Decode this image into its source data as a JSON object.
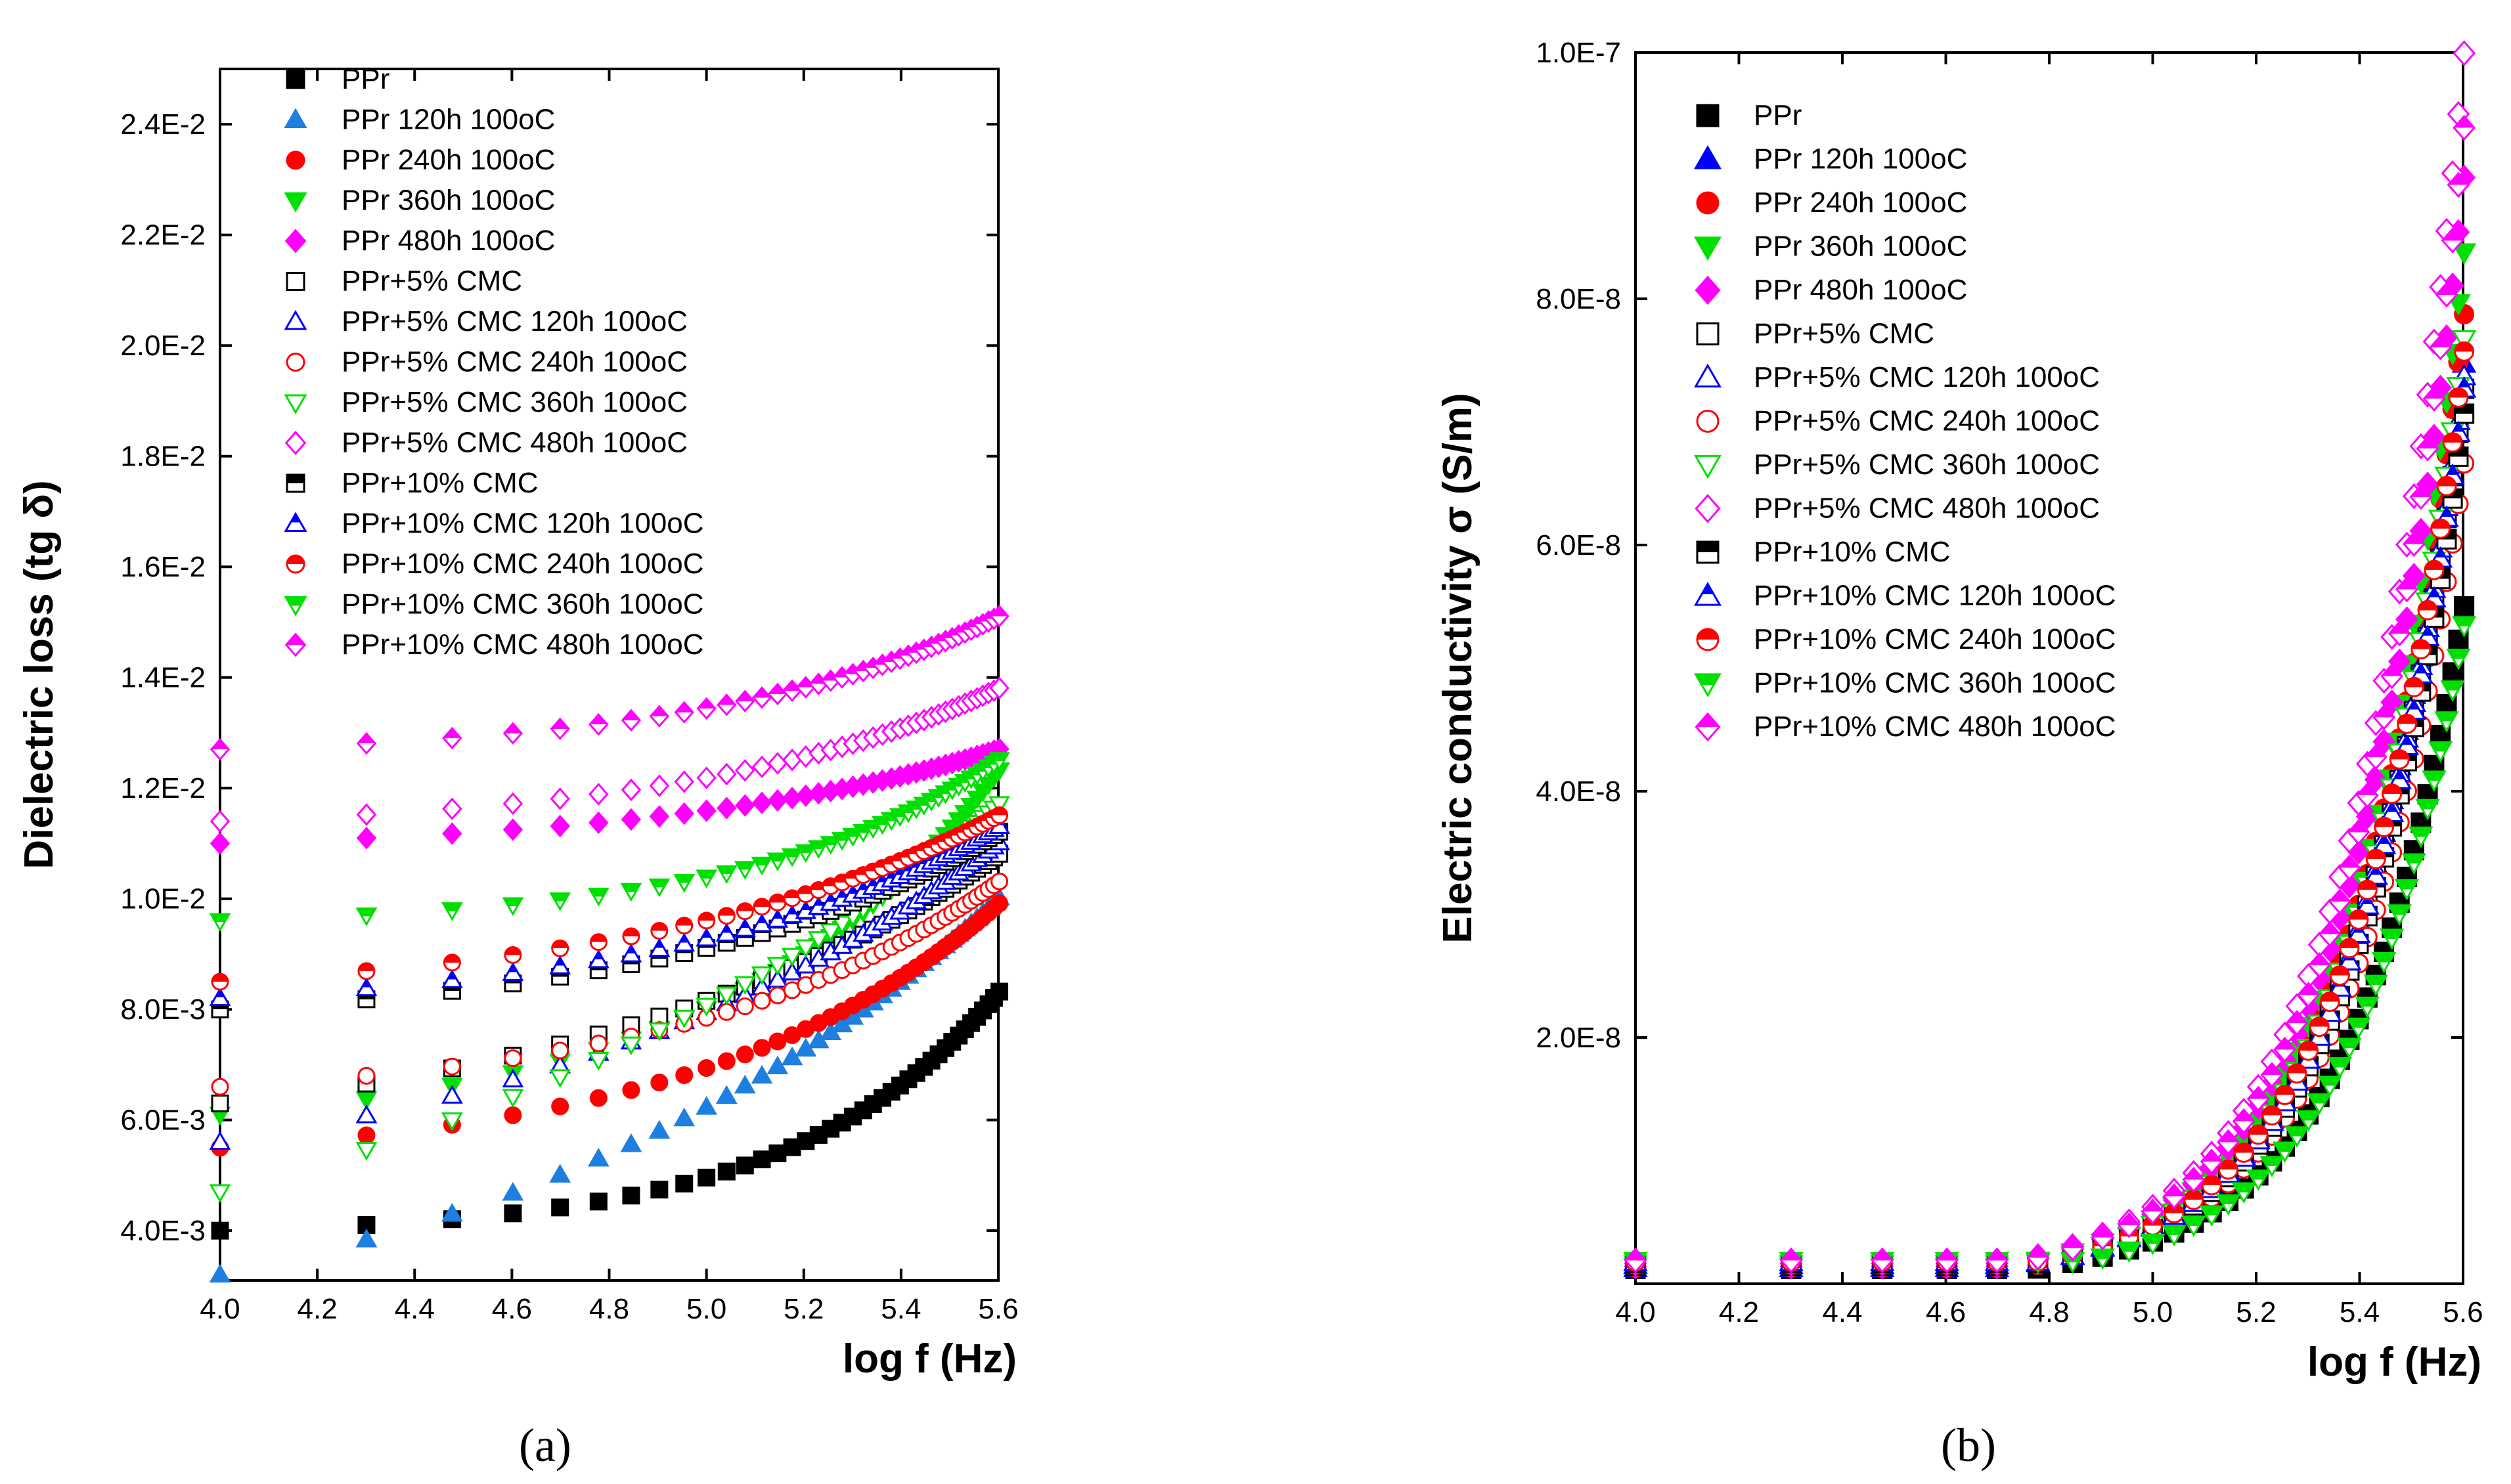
{
  "chart_data": [
    {
      "type": "scatter",
      "panel": "(a)",
      "caption": "(a)",
      "xlabel": "log f (Hz)",
      "ylabel": "Dielectric loss (tg δ)",
      "xlim": [
        4.0,
        5.6
      ],
      "ylim": [
        0.0031,
        0.025
      ],
      "xticks": [
        4.0,
        4.2,
        4.4,
        4.6,
        4.8,
        5.0,
        5.2,
        5.4,
        5.6
      ],
      "xtick_labels": [
        "4.0",
        "4.2",
        "4.4",
        "4.6",
        "4.8",
        "5.0",
        "5.2",
        "5.4",
        "5.6"
      ],
      "yticks": [
        0.004,
        0.006,
        0.008,
        0.01,
        0.012,
        0.014,
        0.016,
        0.018,
        0.02,
        0.022,
        0.024
      ],
      "ytick_labels": [
        "4.0E-3",
        "6.0E-3",
        "8.0E-3",
        "1.0E-2",
        "1.2E-2",
        "1.4E-2",
        "1.6E-2",
        "1.8E-2",
        "2.0E-2",
        "2.2E-2",
        "2.4E-2"
      ],
      "legend_position": "top-left",
      "series": [
        {
          "name": "PPr",
          "marker": "square",
          "fill": "solid",
          "color": "#000000",
          "start": 0.004,
          "end": 0.0083
        },
        {
          "name": "PPr  120h 100oC",
          "marker": "triangle-up",
          "fill": "solid",
          "color": "#1E7FE0",
          "start": 0.0032,
          "end": 0.01
        },
        {
          "name": "PPr  240h 100oC",
          "marker": "circle",
          "fill": "solid",
          "color": "#FF0000",
          "start": 0.0055,
          "end": 0.0099
        },
        {
          "name": "PPr  360h 100oC",
          "marker": "triangle-down",
          "fill": "solid",
          "color": "#00E000",
          "start": 0.0061,
          "end": 0.0123
        },
        {
          "name": "PPr  480h 100oC",
          "marker": "diamond",
          "fill": "solid",
          "color": "#FF00FF",
          "start": 0.011,
          "end": 0.0127
        },
        {
          "name": "PPr+5% CMC",
          "marker": "square",
          "fill": "open",
          "color": "#000000",
          "start": 0.0063,
          "end": 0.0108
        },
        {
          "name": "PPr+5% CMC  120h 100oC",
          "marker": "triangle-up",
          "fill": "open",
          "color": "#0000FF",
          "start": 0.0056,
          "end": 0.011
        },
        {
          "name": "PPr+5% CMC  240h 100oC",
          "marker": "circle",
          "fill": "open",
          "color": "#FF0000",
          "start": 0.0066,
          "end": 0.0103
        },
        {
          "name": "PPr+5% CMC  360h 100oC",
          "marker": "triangle-down",
          "fill": "open",
          "color": "#00E000",
          "start": 0.0047,
          "end": 0.0117
        },
        {
          "name": "PPr+5% CMC  480h 100oC",
          "marker": "diamond",
          "fill": "open",
          "color": "#FF00FF",
          "start": 0.0114,
          "end": 0.0138
        },
        {
          "name": "PPr+10% CMC",
          "marker": "square",
          "fill": "half",
          "color": "#000000",
          "start": 0.008,
          "end": 0.0112
        },
        {
          "name": "PPr+10% CMC  120h 100oC",
          "marker": "triangle-up",
          "fill": "half",
          "color": "#0000FF",
          "start": 0.0082,
          "end": 0.0113
        },
        {
          "name": "PPr+10% CMC  240h 100oC",
          "marker": "circle",
          "fill": "half",
          "color": "#FF0000",
          "start": 0.0085,
          "end": 0.0115
        },
        {
          "name": "PPr+10% CMC  360h 100oC",
          "marker": "triangle-down",
          "fill": "half",
          "color": "#00E000",
          "start": 0.0096,
          "end": 0.0125
        },
        {
          "name": "PPr+10% CMC  480h 100oC",
          "marker": "diamond",
          "fill": "half",
          "color": "#FF00FF",
          "start": 0.0127,
          "end": 0.0151
        }
      ]
    },
    {
      "type": "scatter",
      "panel": "(b)",
      "caption": "(b)",
      "xlabel": "log f (Hz)",
      "ylabel": "Electric conductivity σ (S/m)",
      "xlim": [
        4.0,
        5.6
      ],
      "ylim": [
        0.0,
        1e-07
      ],
      "xticks": [
        4.0,
        4.2,
        4.4,
        4.6,
        4.8,
        5.0,
        5.2,
        5.4,
        5.6
      ],
      "xtick_labels": [
        "4.0",
        "4.2",
        "4.4",
        "4.6",
        "4.8",
        "5.0",
        "5.2",
        "5.4",
        "5.6"
      ],
      "yticks": [
        2e-08,
        4e-08,
        6e-08,
        8e-08,
        1e-07
      ],
      "ytick_labels": [
        "2.0E-8",
        "4.0E-8",
        "6.0E-8",
        "8.0E-8",
        "1.0E-7"
      ],
      "legend_position": "top-left",
      "series": [
        {
          "name": "PPr",
          "marker": "square",
          "fill": "solid",
          "color": "#000000",
          "end": 5.45e-08
        },
        {
          "name": "PPr  120h 100oC",
          "marker": "triangle-up",
          "fill": "solid",
          "color": "#0000FF",
          "end": 7.4e-08
        },
        {
          "name": "PPr  240h 100oC",
          "marker": "circle",
          "fill": "solid",
          "color": "#FF0000",
          "end": 7.8e-08
        },
        {
          "name": "PPr  360h 100oC",
          "marker": "triangle-down",
          "fill": "solid",
          "color": "#00E000",
          "end": 8.3e-08
        },
        {
          "name": "PPr  480h 100oC",
          "marker": "diamond",
          "fill": "solid",
          "color": "#FF00FF",
          "end": 8.9e-08
        },
        {
          "name": "PPr+5% CMC",
          "marker": "square",
          "fill": "open",
          "color": "#000000",
          "end": 7.2e-08
        },
        {
          "name": "PPr+5% CMC  120h 100oC",
          "marker": "triangle-up",
          "fill": "open",
          "color": "#0000FF",
          "end": 7.3e-08
        },
        {
          "name": "PPr+5% CMC  240h 100oC",
          "marker": "circle",
          "fill": "open",
          "color": "#FF0000",
          "end": 6.6e-08
        },
        {
          "name": "PPr+5% CMC  360h 100oC",
          "marker": "triangle-down",
          "fill": "open",
          "color": "#00E000",
          "end": 7.6e-08
        },
        {
          "name": "PPr+5% CMC  480h 100oC",
          "marker": "diamond",
          "fill": "open",
          "color": "#FF00FF",
          "end": 9.9e-08
        },
        {
          "name": "PPr+10% CMC",
          "marker": "square",
          "fill": "half",
          "color": "#000000",
          "end": 7e-08
        },
        {
          "name": "PPr+10% CMC  120h 100oC",
          "marker": "triangle-up",
          "fill": "half",
          "color": "#0000FF",
          "end": 7.2e-08
        },
        {
          "name": "PPr+10% CMC  240h 100oC",
          "marker": "circle",
          "fill": "half",
          "color": "#FF0000",
          "end": 7.5e-08
        },
        {
          "name": "PPr+10% CMC  360h 100oC",
          "marker": "triangle-down",
          "fill": "half",
          "color": "#00E000",
          "end": 5.3e-08
        },
        {
          "name": "PPr+10% CMC  480h 100oC",
          "marker": "diamond",
          "fill": "half",
          "color": "#FF00FF",
          "end": 9.3e-08
        }
      ]
    }
  ]
}
